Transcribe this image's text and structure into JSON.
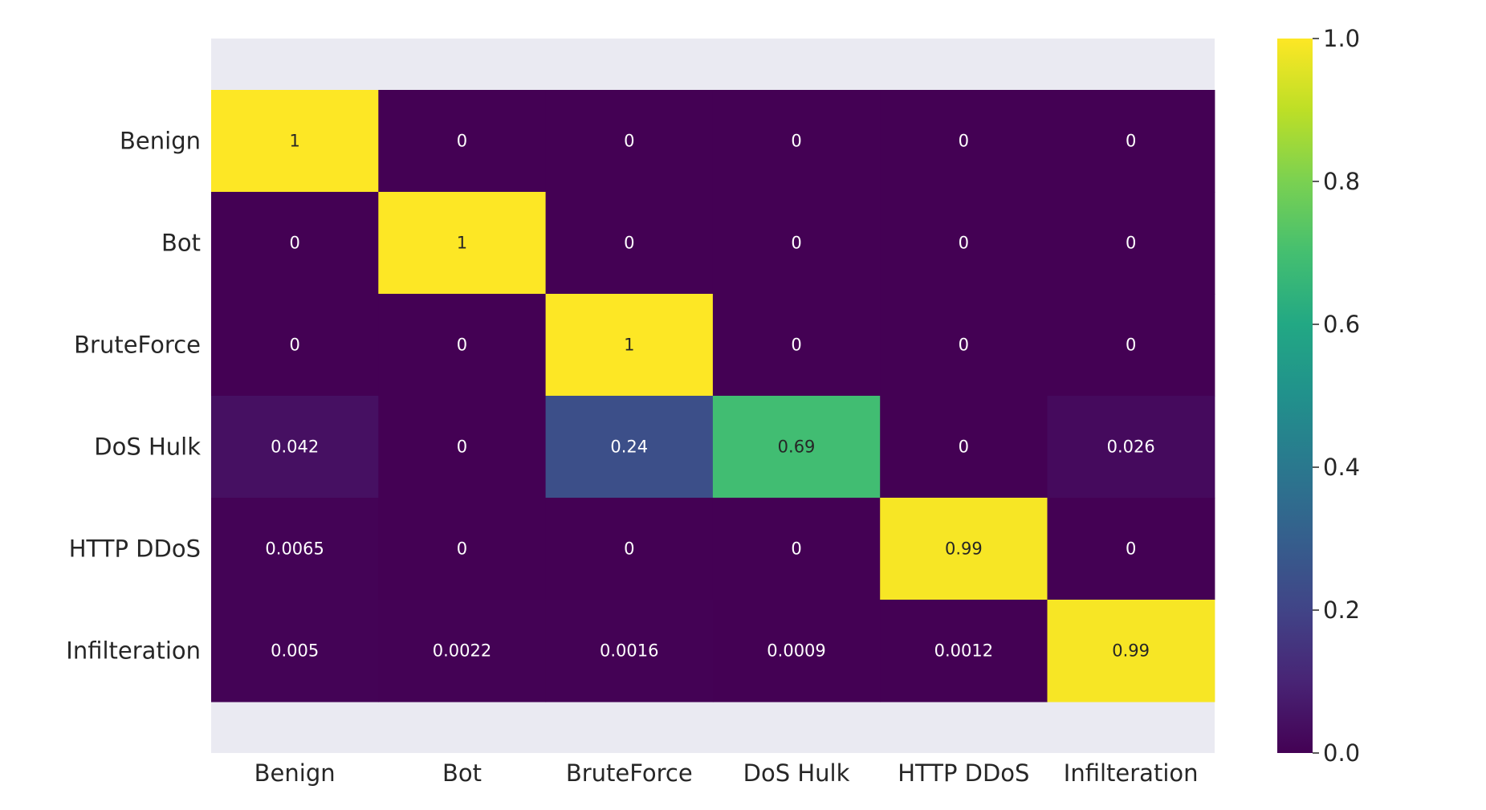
{
  "chart_data": {
    "type": "heatmap",
    "title": "",
    "xlabel": "",
    "ylabel": "",
    "x_categories": [
      "Benign",
      "Bot",
      "BruteForce",
      "DoS Hulk",
      "HTTP DDoS",
      "Infilteration"
    ],
    "y_categories": [
      "Benign",
      "Bot",
      "BruteForce",
      "DoS Hulk",
      "HTTP DDoS",
      "Infilteration"
    ],
    "values": [
      [
        1,
        0,
        0,
        0,
        0,
        0
      ],
      [
        0,
        1,
        0,
        0,
        0,
        0
      ],
      [
        0,
        0,
        1,
        0,
        0,
        0
      ],
      [
        0.042,
        0,
        0.24,
        0.69,
        0,
        0.026
      ],
      [
        0.0065,
        0,
        0,
        0,
        0.99,
        0
      ],
      [
        0.005,
        0.0022,
        0.0016,
        0.0009,
        0.0012,
        0.99
      ]
    ],
    "annotations": [
      [
        "1",
        "0",
        "0",
        "0",
        "0",
        "0"
      ],
      [
        "0",
        "1",
        "0",
        "0",
        "0",
        "0"
      ],
      [
        "0",
        "0",
        "1",
        "0",
        "0",
        "0"
      ],
      [
        "0.042",
        "0",
        "0.24",
        "0.69",
        "0",
        "0.026"
      ],
      [
        "0.0065",
        "0",
        "0",
        "0",
        "0.99",
        "0"
      ],
      [
        "0.005",
        "0.0022",
        "0.0016",
        "0.0009",
        "0.0012",
        "0.99"
      ]
    ],
    "colorbar": {
      "range": [
        0,
        1
      ],
      "ticks": [
        "0.0",
        "0.2",
        "0.4",
        "0.6",
        "0.8",
        "1.0"
      ],
      "colormap": "viridis"
    },
    "colors": {
      "plot_background": "#eaeaf2",
      "text_dark": "#262626",
      "text_light": "#ffffff"
    }
  }
}
